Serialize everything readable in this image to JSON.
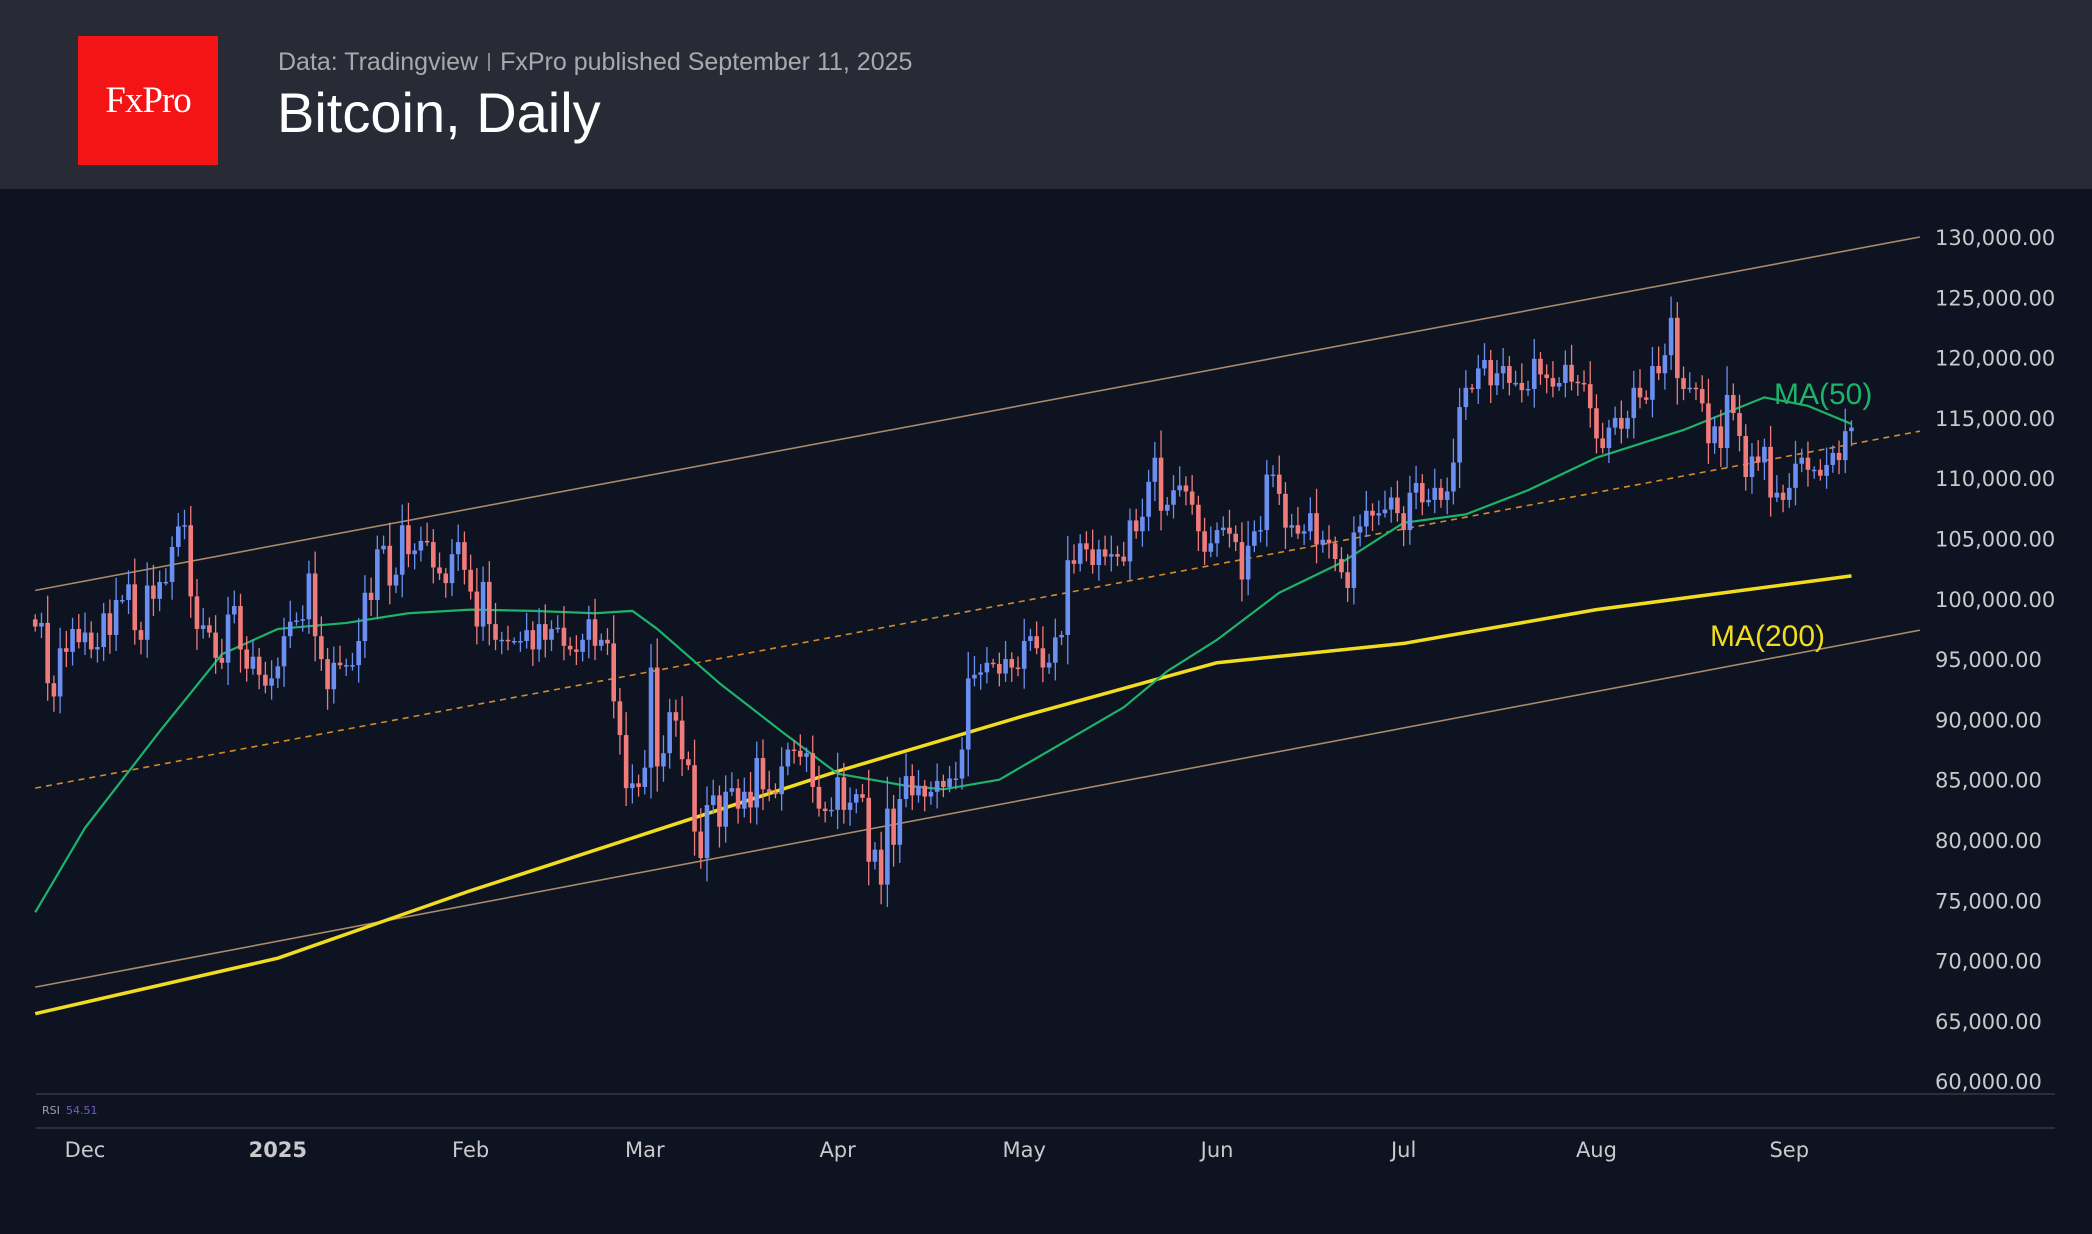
{
  "header": {
    "logo_text": "FxPro",
    "source": "Data: Tradingview",
    "published": "FxPro published September 11, 2025",
    "title": "Bitcoin, Daily"
  },
  "colors": {
    "up": "#6b8ff0",
    "down": "#f07b7b",
    "ma50": "#1db36a",
    "ma200": "#f2dc1f",
    "channel": "#a88a6a",
    "midline": "#d48a2a"
  },
  "chart_data": {
    "type": "candlestick",
    "title": "Bitcoin, Daily",
    "values_unit": "thousand USD",
    "first_date": "2024-11-23",
    "last_date": "2025-09-11",
    "ylim": [
      60,
      130
    ],
    "y_ticks": [
      "130,000.00",
      "125,000.00",
      "120,000.00",
      "115,000.00",
      "110,000.00",
      "105,000.00",
      "100,000.00",
      "95,000.00",
      "90,000.00",
      "85,000.00",
      "80,000.00",
      "75,000.00",
      "70,000.00",
      "65,000.00",
      "60,000.00"
    ],
    "x_ticks": [
      {
        "label": "Dec",
        "index": 8,
        "bold": false
      },
      {
        "label": "2025",
        "index": 39,
        "bold": true
      },
      {
        "label": "Feb",
        "index": 70,
        "bold": false
      },
      {
        "label": "Mar",
        "index": 98,
        "bold": false
      },
      {
        "label": "Apr",
        "index": 129,
        "bold": false
      },
      {
        "label": "May",
        "index": 159,
        "bold": false
      },
      {
        "label": "Jun",
        "index": 190,
        "bold": false
      },
      {
        "label": "Jul",
        "index": 220,
        "bold": false
      },
      {
        "label": "Aug",
        "index": 251,
        "bold": false
      },
      {
        "label": "Sep",
        "index": 282,
        "bold": false
      }
    ],
    "first_open": 98.3,
    "closes": [
      97.7,
      98.0,
      93.0,
      91.9,
      95.9,
      95.6,
      97.5,
      96.4,
      97.2,
      95.8,
      96.0,
      98.8,
      97.0,
      99.9,
      99.9,
      101.2,
      97.4,
      96.6,
      101.1,
      100.0,
      101.4,
      101.4,
      104.3,
      106.0,
      106.1,
      100.2,
      97.5,
      97.8,
      97.2,
      95.1,
      94.7,
      98.7,
      99.4,
      95.8,
      94.2,
      95.2,
      93.7,
      92.8,
      93.4,
      94.4,
      96.9,
      98.1,
      98.2,
      98.3,
      102.1,
      96.9,
      95.0,
      92.5,
      94.7,
      94.5,
      94.5,
      94.5,
      96.5,
      100.5,
      99.9,
      104.1,
      104.4,
      101.1,
      102.0,
      106.1,
      103.7,
      104.0,
      104.8,
      104.7,
      102.6,
      102.1,
      101.3,
      103.7,
      104.7,
      102.4,
      100.6,
      97.7,
      101.4,
      97.9,
      96.6,
      96.6,
      96.5,
      96.5,
      96.5,
      97.4,
      95.8,
      97.9,
      96.6,
      97.5,
      97.6,
      96.1,
      95.8,
      95.6,
      96.6,
      98.3,
      96.1,
      96.6,
      96.3,
      91.5,
      88.7,
      84.3,
      84.7,
      84.4,
      86.0,
      94.3,
      86.1,
      87.2,
      90.6,
      89.9,
      86.7,
      86.2,
      80.7,
      78.5,
      82.9,
      83.7,
      81.1,
      84.0,
      84.3,
      82.6,
      84.0,
      82.7,
      86.8,
      84.2,
      84.0,
      83.8,
      86.1,
      87.5,
      87.4,
      86.9,
      87.2,
      84.4,
      82.6,
      82.4,
      82.5,
      85.2,
      82.5,
      83.1,
      83.8,
      83.5,
      78.2,
      79.2,
      76.3,
      82.6,
      79.6,
      83.4,
      85.3,
      83.7,
      84.5,
      83.6,
      84.0,
      84.9,
      84.4,
      85.1,
      85.1,
      87.5,
      93.4,
      93.7,
      93.9,
      94.7,
      94.6,
      93.8,
      95.0,
      94.3,
      94.2,
      96.5,
      96.9,
      95.9,
      94.3,
      94.7,
      96.8,
      97.0,
      103.2,
      102.9,
      104.6,
      104.1,
      102.8,
      104.1,
      103.5,
      103.7,
      103.5,
      103.1,
      106.5,
      105.6,
      106.8,
      109.7,
      111.7,
      107.3,
      107.8,
      109.0,
      109.4,
      108.9,
      107.8,
      105.6,
      103.9,
      104.6,
      105.7,
      105.9,
      105.4,
      104.7,
      101.6,
      104.4,
      105.6,
      105.7,
      110.3,
      110.3,
      108.7,
      105.9,
      106.1,
      105.4,
      105.6,
      107.1,
      104.5,
      104.9,
      104.6,
      103.3,
      102.2,
      100.9,
      105.5,
      106.0,
      107.3,
      106.9,
      107.1,
      107.4,
      108.4,
      107.1,
      105.7,
      108.8,
      109.6,
      108.0,
      108.2,
      109.2,
      108.2,
      108.9,
      111.3,
      115.9,
      117.5,
      117.4,
      119.1,
      119.8,
      117.7,
      118.7,
      119.3,
      117.9,
      117.9,
      117.3,
      117.4,
      119.9,
      118.6,
      118.3,
      117.6,
      117.9,
      119.4,
      118.0,
      117.9,
      117.8,
      115.8,
      113.3,
      112.5,
      114.2,
      115.0,
      114.1,
      115.0,
      117.5,
      116.7,
      116.5,
      119.3,
      118.7,
      120.2,
      123.3,
      118.3,
      117.4,
      117.5,
      117.4,
      116.2,
      112.9,
      114.3,
      112.5,
      116.9,
      115.4,
      113.5,
      110.1,
      111.8,
      111.3,
      112.6,
      108.4,
      108.8,
      108.2,
      109.2,
      111.2,
      111.7,
      110.7,
      110.7,
      110.2,
      111.1,
      112.1,
      111.5,
      113.9,
      114.2
    ],
    "ma50": {
      "label": "MA(50)",
      "points": [
        [
          0,
          74
        ],
        [
          8,
          81
        ],
        [
          20,
          89
        ],
        [
          30,
          95.4
        ],
        [
          39,
          97.5
        ],
        [
          50,
          98
        ],
        [
          60,
          98.8
        ],
        [
          70,
          99.1
        ],
        [
          80,
          99
        ],
        [
          90,
          98.8
        ],
        [
          96,
          99
        ],
        [
          100,
          97.5
        ],
        [
          110,
          93
        ],
        [
          120,
          89
        ],
        [
          129,
          85.5
        ],
        [
          140,
          84.5
        ],
        [
          146,
          84.2
        ],
        [
          155,
          85
        ],
        [
          165,
          88
        ],
        [
          175,
          91
        ],
        [
          182,
          94
        ],
        [
          190,
          96.6
        ],
        [
          200,
          100.5
        ],
        [
          210,
          103
        ],
        [
          220,
          106.3
        ],
        [
          230,
          107
        ],
        [
          240,
          109
        ],
        [
          251,
          111.7
        ],
        [
          265,
          114
        ],
        [
          278,
          116.7
        ],
        [
          285,
          116
        ],
        [
          292,
          114.5
        ]
      ]
    },
    "ma200": {
      "label": "MA(200)",
      "points": [
        [
          0,
          65.6
        ],
        [
          39,
          70.2
        ],
        [
          70,
          75.8
        ],
        [
          98,
          80.5
        ],
        [
          129,
          85.7
        ],
        [
          159,
          90.3
        ],
        [
          190,
          94.7
        ],
        [
          220,
          96.3
        ],
        [
          251,
          99.1
        ],
        [
          292,
          101.9
        ]
      ]
    },
    "channel_upper": [
      [
        0,
        100.7
      ],
      [
        303,
        130
      ]
    ],
    "channel_lower": [
      [
        0,
        67.8
      ],
      [
        303,
        97.4
      ]
    ],
    "channel_mid": [
      [
        0,
        84.3
      ],
      [
        303,
        113.9
      ]
    ],
    "rsi": {
      "label": "RSI",
      "value": "54.51"
    }
  }
}
